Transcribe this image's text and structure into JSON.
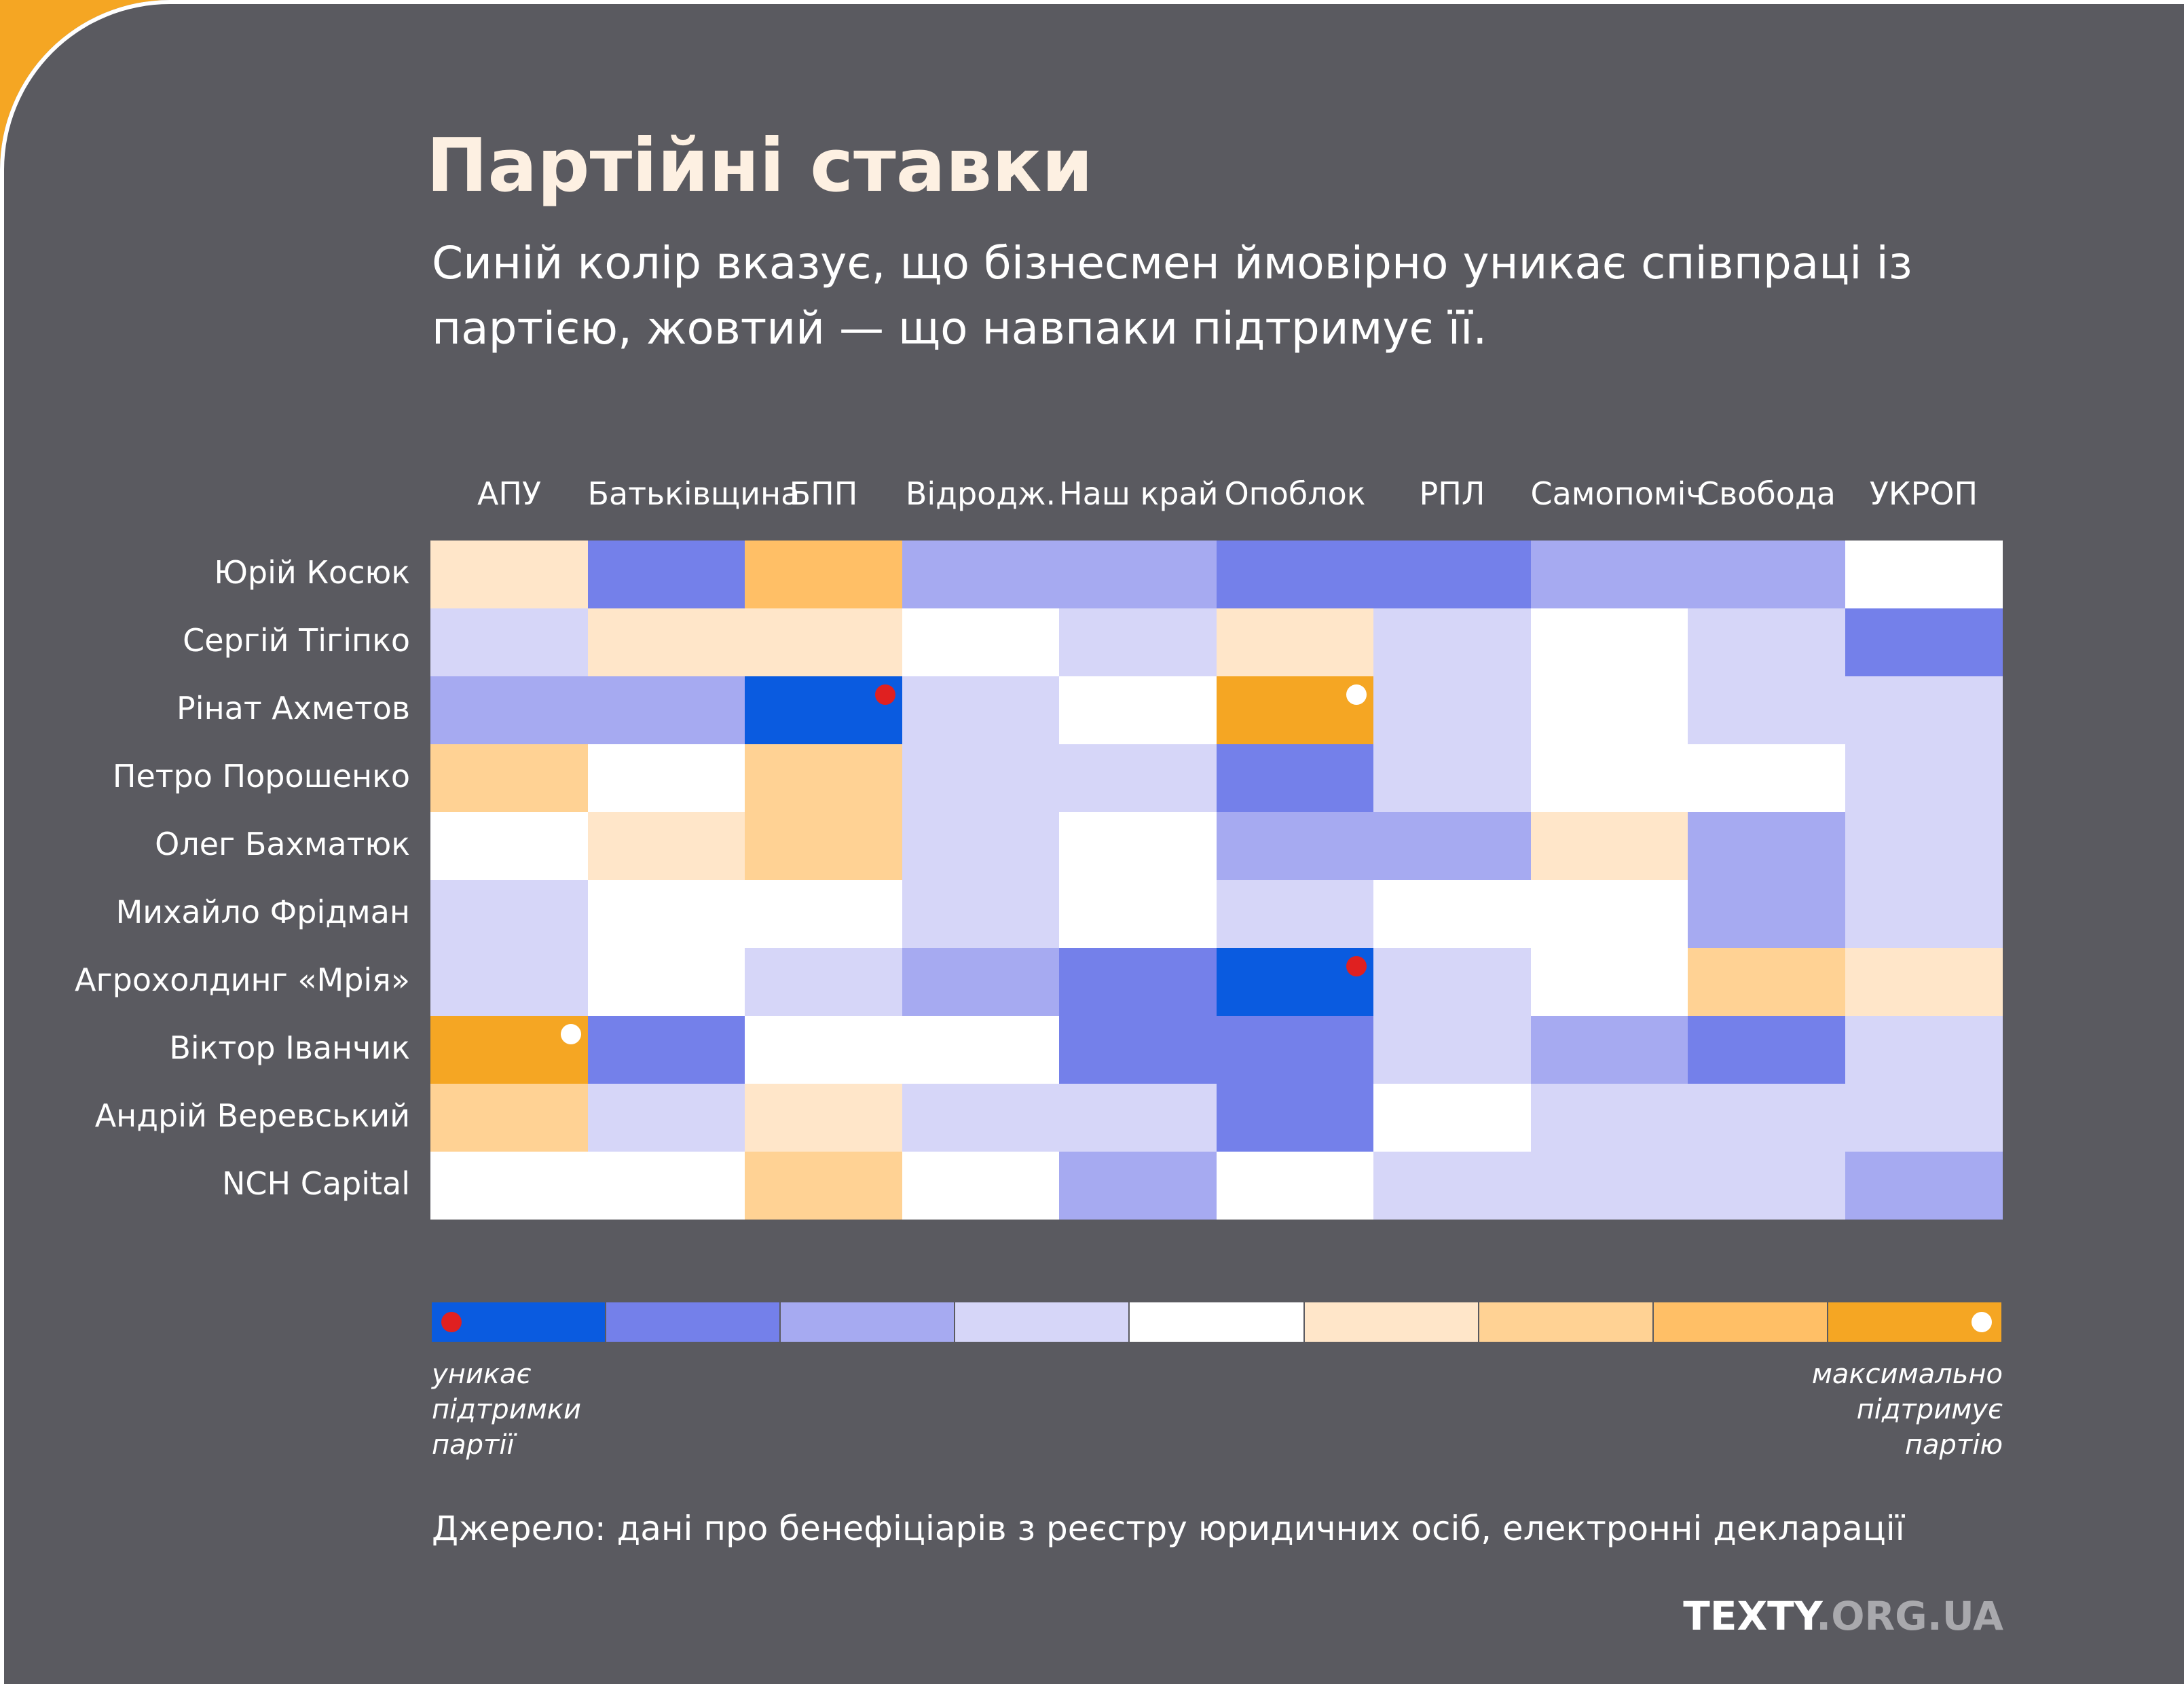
{
  "title": "Партійні ставки",
  "subtitle": "Синій колір вказує, що бізнесмен ймовірно уникає співпраці із партією, жовтий — що навпаки підтримує її.",
  "source": "Джерело: дані про бенефіціарів з реєстру юридичних осіб, електронні декларації",
  "brand": {
    "main": "TEXTY",
    "suffix": ".ORG.UA"
  },
  "colors": {
    "background": "#5a5a60",
    "accent": "#f5a623",
    "scale": [
      "#0a5be0",
      "#7480ea",
      "#a6aaf1",
      "#d6d6f8",
      "#ffffff",
      "#ffe6c9",
      "#ffd294",
      "#ffbf66",
      "#f5a623"
    ],
    "marker_avoid": "#e02020",
    "marker_support": "#ffffff"
  },
  "legend": {
    "left": [
      "уникає",
      "підтримки",
      "партії"
    ],
    "right": [
      "максимально",
      "підтримує",
      "партію"
    ]
  },
  "chart_data": {
    "type": "heatmap",
    "title": "Партійні ставки",
    "scale_note": "levels -4 (уникає підтримки партії) … 0 … +4 (максимально підтримує партію)",
    "columns": [
      "АПУ",
      "Батьківщина",
      "БПП",
      "Відродж.",
      "Наш край",
      "Опоблок",
      "РПЛ",
      "Самопоміч",
      "Свобода",
      "УКРОП"
    ],
    "rows": [
      "Юрій Косюк",
      "Сергій Тігіпко",
      "Рінат Ахметов",
      "Петро Порошенко",
      "Олег Бахматюк",
      "Михайло Фрідман",
      "Агрохолдинг «Мрія»",
      "Віктор Іванчик",
      "Андрій Веревський",
      "NCH Capital"
    ],
    "values": [
      [
        1,
        -3,
        3,
        -2,
        -2,
        -3,
        -3,
        -2,
        -2,
        0
      ],
      [
        -1,
        1,
        1,
        0,
        -1,
        1,
        -1,
        0,
        -1,
        -3
      ],
      [
        -2,
        -2,
        -4,
        -1,
        0,
        4,
        -1,
        0,
        -1,
        -1
      ],
      [
        2,
        0,
        2,
        -1,
        -1,
        -3,
        -1,
        0,
        0,
        -1
      ],
      [
        0,
        1,
        2,
        -1,
        0,
        -2,
        -2,
        1,
        -2,
        -1
      ],
      [
        -1,
        0,
        0,
        -1,
        0,
        -1,
        0,
        0,
        -2,
        -1
      ],
      [
        -1,
        0,
        -1,
        -2,
        -3,
        -4,
        -1,
        0,
        2,
        1
      ],
      [
        4,
        -3,
        0,
        0,
        -3,
        -3,
        -1,
        -2,
        -3,
        -1
      ],
      [
        2,
        -1,
        1,
        -1,
        -1,
        -3,
        0,
        -1,
        -1,
        -1
      ],
      [
        0,
        0,
        2,
        0,
        -2,
        0,
        -1,
        -1,
        -1,
        -2
      ]
    ],
    "markers": [
      {
        "row": 2,
        "col": 2,
        "type": "avoid"
      },
      {
        "row": 2,
        "col": 5,
        "type": "support"
      },
      {
        "row": 6,
        "col": 5,
        "type": "avoid"
      },
      {
        "row": 7,
        "col": 0,
        "type": "support"
      }
    ]
  }
}
